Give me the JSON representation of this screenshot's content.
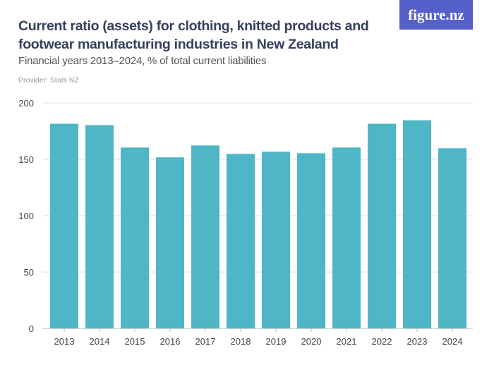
{
  "title": "Current ratio (assets) for clothing, knitted products and footwear manufacturing industries in New Zealand",
  "subtitle": "Financial years 2013–2024, % of total current liabilities",
  "provider": "Provider: Stats NZ",
  "logo": "figure.nz",
  "chart_data": {
    "type": "bar",
    "title": "Current ratio (assets) for clothing, knitted products and footwear manufacturing industries in New Zealand",
    "subtitle": "Financial years 2013–2024, % of total current liabilities",
    "categories": [
      "2013",
      "2014",
      "2015",
      "2016",
      "2017",
      "2018",
      "2019",
      "2020",
      "2021",
      "2022",
      "2023",
      "2024"
    ],
    "values": [
      181.5,
      180.3,
      160.4,
      151.7,
      162.3,
      154.8,
      156.7,
      155.4,
      160.4,
      181.5,
      184.6,
      159.8
    ],
    "ylim": [
      0,
      200
    ],
    "yticks": [
      "0",
      "50",
      "100",
      "150",
      "200"
    ],
    "grid": true,
    "bar_color": "#4eb6c6"
  }
}
